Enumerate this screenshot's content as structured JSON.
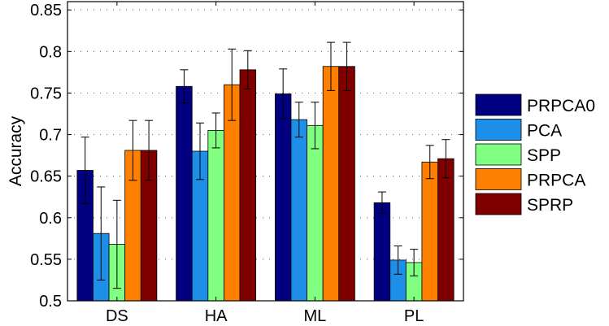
{
  "chart_data": {
    "type": "bar",
    "title": "",
    "xlabel": "",
    "ylabel": "Accuracy",
    "ylim": [
      0.5,
      0.86
    ],
    "yticks": [
      0.5,
      0.55,
      0.6,
      0.65,
      0.7,
      0.75,
      0.8,
      0.85
    ],
    "ytick_labels": [
      "0.5",
      "0.55",
      "0.6",
      "0.65",
      "0.7",
      "0.75",
      "0.8",
      "0.85"
    ],
    "categories": [
      "DS",
      "HA",
      "ML",
      "PL"
    ],
    "grid": "y-dotted",
    "legend_position": "right",
    "series": [
      {
        "name": "PRPCA0",
        "color": "#000080",
        "values": [
          0.657,
          0.758,
          0.749,
          0.618
        ],
        "errors": [
          0.04,
          0.02,
          0.03,
          0.013
        ]
      },
      {
        "name": "PCA",
        "color": "#1e8fe8",
        "values": [
          0.581,
          0.68,
          0.718,
          0.549
        ],
        "errors": [
          0.056,
          0.034,
          0.021,
          0.017
        ]
      },
      {
        "name": "SPP",
        "color": "#80ff80",
        "values": [
          0.568,
          0.705,
          0.711,
          0.546
        ],
        "errors": [
          0.053,
          0.021,
          0.028,
          0.016
        ]
      },
      {
        "name": "PRPCA",
        "color": "#ff8000",
        "values": [
          0.681,
          0.76,
          0.782,
          0.667
        ],
        "errors": [
          0.036,
          0.043,
          0.029,
          0.02
        ]
      },
      {
        "name": "SPRP",
        "color": "#800000",
        "values": [
          0.681,
          0.778,
          0.782,
          0.671
        ],
        "errors": [
          0.036,
          0.023,
          0.029,
          0.023
        ]
      }
    ]
  }
}
